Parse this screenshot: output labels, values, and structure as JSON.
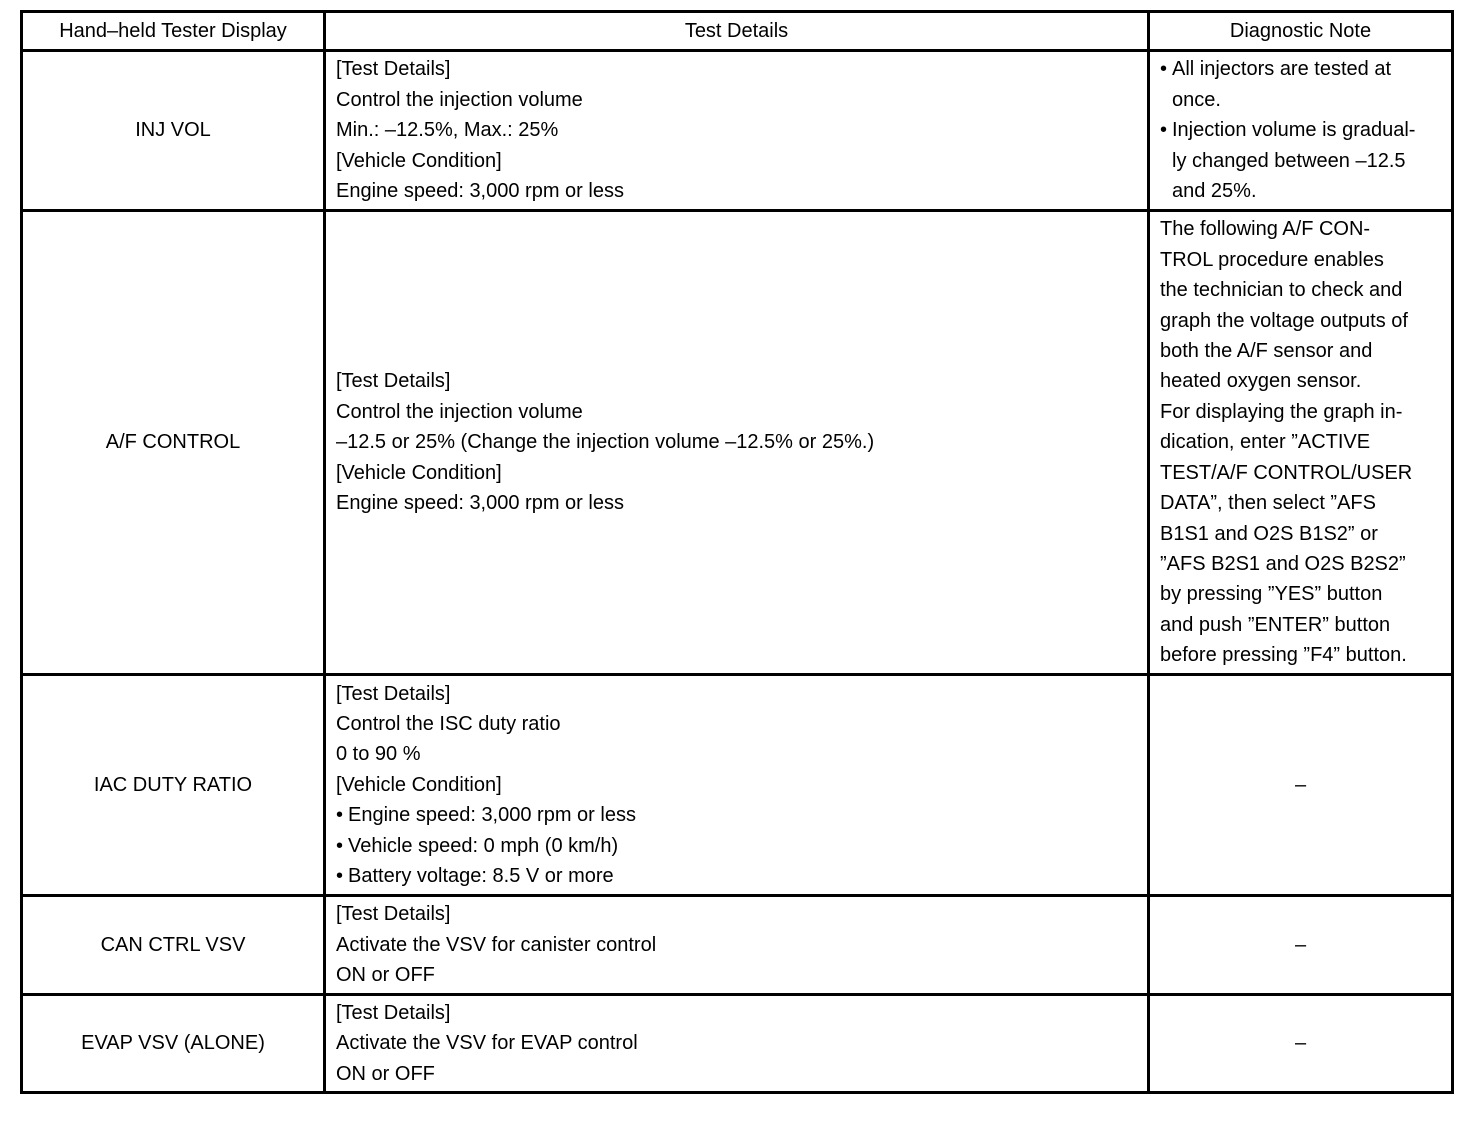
{
  "headers": [
    "Hand–held Tester Display",
    "Test Details",
    "Diagnostic Note"
  ],
  "rows": [
    {
      "display": "INJ VOL",
      "details": [
        {
          "t": "[Test Details]"
        },
        {
          "t": "Control the injection volume"
        },
        {
          "t": "Min.: –12.5%, Max.: 25%"
        },
        {
          "t": "[Vehicle Condition]"
        },
        {
          "t": "Engine speed: 3,000 rpm or less"
        }
      ],
      "note": [
        {
          "t": "All injectors are tested at",
          "b": true
        },
        {
          "t": "once.",
          "c": true
        },
        {
          "t": "Injection volume is gradual-",
          "b": true
        },
        {
          "t": "ly changed between –12.5",
          "c": true
        },
        {
          "t": "and 25%.",
          "c": true
        }
      ]
    },
    {
      "display": "A/F CONTROL",
      "details": [
        {
          "t": "[Test Details]"
        },
        {
          "t": "Control the injection volume"
        },
        {
          "t": "–12.5 or 25% (Change the injection volume –12.5% or 25%.)"
        },
        {
          "t": "[Vehicle Condition]"
        },
        {
          "t": "Engine speed: 3,000 rpm or less"
        }
      ],
      "note": [
        {
          "t": "The following A/F CON-"
        },
        {
          "t": "TROL procedure enables"
        },
        {
          "t": "the technician to check and"
        },
        {
          "t": "graph the voltage outputs of"
        },
        {
          "t": "both the A/F sensor and"
        },
        {
          "t": "heated oxygen sensor."
        },
        {
          "t": "For displaying the graph in-"
        },
        {
          "t": "dication, enter ”ACTIVE"
        },
        {
          "t": "TEST/A/F CONTROL/USER"
        },
        {
          "t": "DATA”, then select ”AFS"
        },
        {
          "t": "B1S1 and O2S B1S2” or"
        },
        {
          "t": "”AFS B2S1 and O2S B2S2”"
        },
        {
          "t": "by pressing ”YES” button"
        },
        {
          "t": "and push ”ENTER” button"
        },
        {
          "t": "before pressing ”F4” button."
        }
      ]
    },
    {
      "display": "IAC DUTY RATIO",
      "details": [
        {
          "t": "[Test Details]"
        },
        {
          "t": "Control the ISC duty ratio"
        },
        {
          "t": "0 to 90 %"
        },
        {
          "t": "[Vehicle Condition]"
        },
        {
          "t": "Engine speed: 3,000 rpm or less",
          "b": true
        },
        {
          "t": "Vehicle speed: 0 mph (0 km/h)",
          "b": true
        },
        {
          "t": "Battery voltage: 8.5 V or more",
          "b": true
        }
      ],
      "note": "–"
    },
    {
      "display": "CAN CTRL VSV",
      "details": [
        {
          "t": "[Test Details]"
        },
        {
          "t": "Activate the VSV for canister control"
        },
        {
          "t": "ON or OFF"
        }
      ],
      "note": "–"
    },
    {
      "display": "EVAP VSV (ALONE)",
      "details": [
        {
          "t": "[Test Details]"
        },
        {
          "t": "Activate the VSV for EVAP control"
        },
        {
          "t": "ON or OFF"
        }
      ],
      "note": "–"
    }
  ]
}
